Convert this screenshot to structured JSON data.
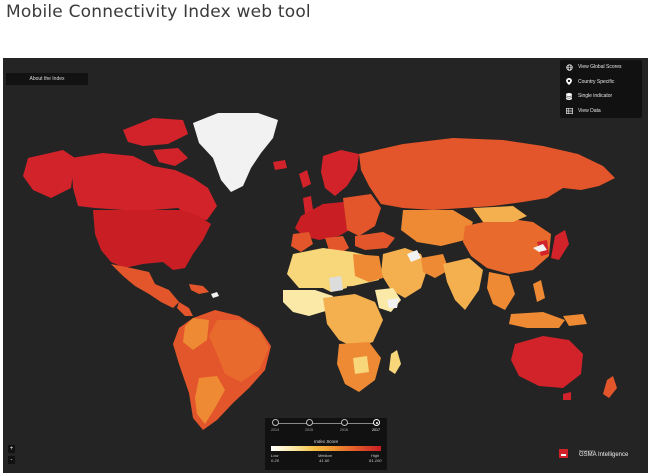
{
  "page": {
    "title": "Mobile Connectivity Index web tool"
  },
  "toolbar": {
    "about_label": "About the Index"
  },
  "menu": {
    "items": [
      {
        "label": "View Global Scores",
        "icon": "globe-icon"
      },
      {
        "label": "Country Specific",
        "icon": "map-pin-icon"
      },
      {
        "label": "Single indicator",
        "icon": "database-icon"
      },
      {
        "label": "View Data",
        "icon": "table-icon"
      }
    ]
  },
  "timeline": {
    "years": [
      "2014",
      "2015",
      "2016",
      "2017"
    ],
    "selected": "2017"
  },
  "legend": {
    "title": "Index Score",
    "low_label": "Low",
    "low_range": "0-20",
    "medium_label": "Medium",
    "medium_range": "41-60",
    "high_label": "High",
    "high_range": "81-100"
  },
  "zoom": {
    "in": "+",
    "out": "-"
  },
  "brand": {
    "powered": "Powered by",
    "name": "GSMA Intelligence"
  },
  "colors": {
    "map_background": "#242424",
    "high": "#d2232a",
    "medium_high": "#e3552a",
    "medium": "#ee8a33",
    "medium_low": "#f4b04f",
    "low": "#f8d67a",
    "very_low": "#fbe9a8",
    "no_data": "#f2f2f2"
  }
}
